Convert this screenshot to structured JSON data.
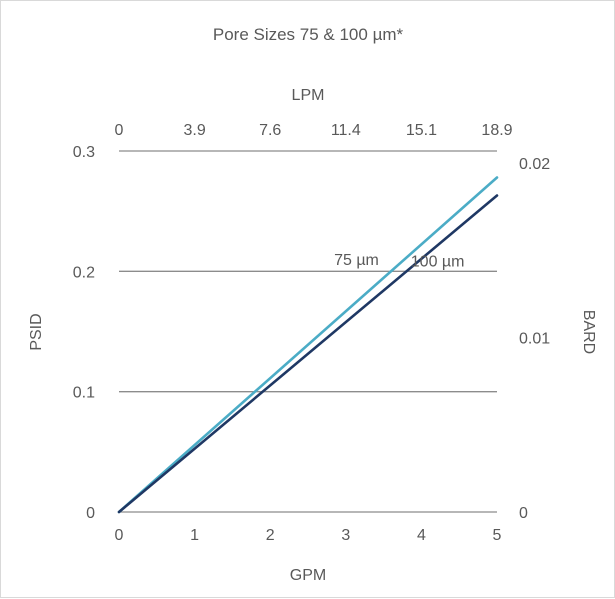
{
  "chart_data": {
    "type": "line",
    "title": "Pore Sizes 75 & 100 µm*",
    "xlabel": "GPM",
    "ylabel": "PSID",
    "x2label": "LPM",
    "y2label": "BARD",
    "xlim": [
      0,
      5
    ],
    "ylim": [
      0,
      0.3
    ],
    "y2lim": [
      0,
      0.0207
    ],
    "x_ticks": [
      0,
      1,
      2,
      3,
      4,
      5
    ],
    "x_tick_labels": [
      "0",
      "1",
      "2",
      "3",
      "4",
      "5"
    ],
    "y_ticks": [
      0,
      0.1,
      0.2,
      0.3
    ],
    "y_tick_labels": [
      "0",
      "0.1",
      "0.2",
      "0.3"
    ],
    "x2_ticks": [
      0,
      3.9,
      7.6,
      11.4,
      15.1,
      18.9
    ],
    "x2_tick_labels": [
      "0",
      "3.9",
      "7.6",
      "11.4",
      "15.1",
      "18.9"
    ],
    "y2_ticks": [
      0,
      0.01,
      0.02
    ],
    "y2_tick_labels": [
      "0",
      "0.01",
      "0.02"
    ],
    "grid": "horizontal",
    "series": [
      {
        "name": "75 µm",
        "color": "#4bacc6",
        "x": [
          0,
          5
        ],
        "y": [
          0,
          0.278
        ]
      },
      {
        "name": "100 µm",
        "color": "#1f3864",
        "x": [
          0,
          5
        ],
        "y": [
          0,
          0.263
        ]
      }
    ]
  }
}
